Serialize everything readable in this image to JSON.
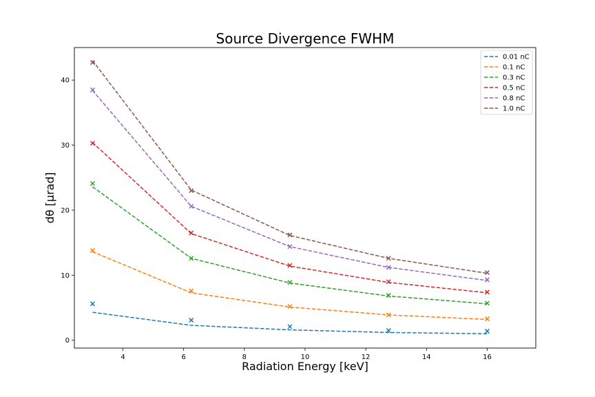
{
  "chart_data": {
    "type": "line",
    "title": "Source Divergence FWHM",
    "xlabel": "Radiation Energy [keV]",
    "ylabel": "dθ [μrad]",
    "xlim": [
      2.4,
      17.6
    ],
    "ylim": [
      -1.2,
      45.0
    ],
    "xticks": [
      4,
      6,
      8,
      10,
      12,
      14,
      16
    ],
    "yticks": [
      0,
      10,
      20,
      30,
      40
    ],
    "grid": false,
    "legend_position": "top-right",
    "x": [
      3.0,
      6.25,
      9.5,
      12.75,
      16.0
    ],
    "series": [
      {
        "name": "0.01 nC",
        "color": "#1f77b4",
        "fit": [
          4.3,
          2.3,
          1.6,
          1.2,
          1.0
        ],
        "measured": [
          5.6,
          3.1,
          2.1,
          1.5,
          1.4
        ]
      },
      {
        "name": "0.1 nC",
        "color": "#ff7f0e",
        "fit": [
          13.6,
          7.3,
          5.1,
          3.9,
          3.2
        ],
        "measured": [
          13.8,
          7.6,
          5.2,
          3.9,
          3.3
        ]
      },
      {
        "name": "0.3 nC",
        "color": "#2ca02c",
        "fit": [
          23.6,
          12.6,
          8.8,
          6.8,
          5.6
        ],
        "measured": [
          24.1,
          12.6,
          8.9,
          6.9,
          5.7
        ]
      },
      {
        "name": "0.5 nC",
        "color": "#d62728",
        "fit": [
          30.4,
          16.4,
          11.4,
          8.9,
          7.3
        ],
        "measured": [
          30.3,
          16.5,
          11.5,
          9.0,
          7.4
        ]
      },
      {
        "name": "0.8 nC",
        "color": "#9467bd",
        "fit": [
          38.4,
          20.6,
          14.4,
          11.2,
          9.2
        ],
        "measured": [
          38.5,
          20.6,
          14.4,
          11.2,
          9.3
        ]
      },
      {
        "name": "1.0 nC",
        "color": "#8c564b",
        "fit": [
          43.0,
          23.1,
          16.1,
          12.6,
          10.3
        ],
        "measured": [
          42.7,
          23.0,
          16.2,
          12.6,
          10.4
        ]
      }
    ]
  }
}
